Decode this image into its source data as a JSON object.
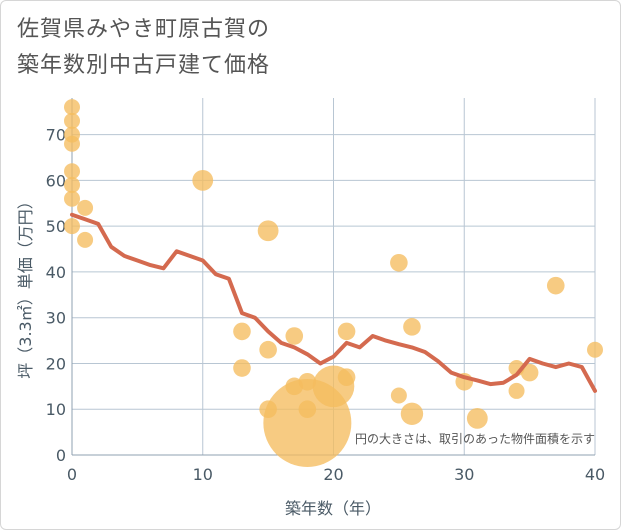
{
  "title_line1": "佐賀県みやき町原古賀の",
  "title_line2": "築年数別中古戸建て価格",
  "chart_data": {
    "type": "scatter",
    "xlabel": "築年数（年）",
    "ylabel": "坪（3.3㎡）単価（万円）",
    "xlim": [
      0,
      40
    ],
    "ylim": [
      0,
      78
    ],
    "xticks": [
      0,
      10,
      20,
      30,
      40
    ],
    "yticks": [
      0,
      10,
      20,
      30,
      40,
      50,
      60,
      70
    ],
    "grid": true,
    "note": "円の大きさは、取引のあった物件面積を示す",
    "colors": {
      "points": "#f5bd5f",
      "line": "#d46a4f",
      "grid": "#b8c6d3"
    },
    "points": [
      {
        "x": 0,
        "y": 76,
        "s": 1
      },
      {
        "x": 0,
        "y": 73,
        "s": 1
      },
      {
        "x": 0,
        "y": 70,
        "s": 1
      },
      {
        "x": 0,
        "y": 68,
        "s": 1
      },
      {
        "x": 0,
        "y": 62,
        "s": 1
      },
      {
        "x": 0,
        "y": 59,
        "s": 1
      },
      {
        "x": 0,
        "y": 56,
        "s": 1
      },
      {
        "x": 0,
        "y": 50,
        "s": 1
      },
      {
        "x": 1,
        "y": 54,
        "s": 1
      },
      {
        "x": 1,
        "y": 47,
        "s": 1
      },
      {
        "x": 10,
        "y": 60,
        "s": 1.3
      },
      {
        "x": 13,
        "y": 27,
        "s": 1.1
      },
      {
        "x": 13,
        "y": 19,
        "s": 1.1
      },
      {
        "x": 15,
        "y": 49,
        "s": 1.3
      },
      {
        "x": 15,
        "y": 23,
        "s": 1.1
      },
      {
        "x": 15,
        "y": 10,
        "s": 1.1
      },
      {
        "x": 17,
        "y": 26,
        "s": 1.1
      },
      {
        "x": 17,
        "y": 15,
        "s": 1.1
      },
      {
        "x": 18,
        "y": 16,
        "s": 1.1
      },
      {
        "x": 18,
        "y": 10,
        "s": 1.1
      },
      {
        "x": 18,
        "y": 7,
        "s": 5.5
      },
      {
        "x": 20,
        "y": 15,
        "s": 2.6
      },
      {
        "x": 21,
        "y": 27,
        "s": 1.1
      },
      {
        "x": 21,
        "y": 17,
        "s": 1.1
      },
      {
        "x": 25,
        "y": 42,
        "s": 1.1
      },
      {
        "x": 25,
        "y": 13,
        "s": 1.0
      },
      {
        "x": 26,
        "y": 28,
        "s": 1.1
      },
      {
        "x": 26,
        "y": 9,
        "s": 1.4
      },
      {
        "x": 30,
        "y": 16,
        "s": 1.1
      },
      {
        "x": 31,
        "y": 8,
        "s": 1.3
      },
      {
        "x": 34,
        "y": 19,
        "s": 1.0
      },
      {
        "x": 34,
        "y": 14,
        "s": 1.0
      },
      {
        "x": 35,
        "y": 18,
        "s": 1.1
      },
      {
        "x": 37,
        "y": 37,
        "s": 1.1
      },
      {
        "x": 40,
        "y": 23,
        "s": 1.0
      }
    ],
    "trend": {
      "x": [
        0,
        1,
        2,
        3,
        4,
        5,
        6,
        7,
        8,
        9,
        10,
        11,
        12,
        13,
        14,
        15,
        16,
        17,
        18,
        19,
        20,
        21,
        22,
        23,
        24,
        25,
        26,
        27,
        28,
        29,
        30,
        31,
        32,
        33,
        34,
        35,
        36,
        37,
        38,
        39,
        40
      ],
      "y": [
        52.5,
        51.5,
        50.5,
        45.5,
        43.5,
        42.5,
        41.5,
        40.8,
        44.5,
        43.5,
        42.5,
        39.5,
        38.5,
        31,
        30,
        27,
        24.5,
        23.5,
        22,
        20,
        21.5,
        24.5,
        23.5,
        26,
        25,
        24.2,
        23.5,
        22.5,
        20.5,
        18,
        17,
        16.3,
        15.5,
        15.8,
        17.5,
        21,
        20,
        19.2,
        20,
        19.2,
        14
      ]
    }
  }
}
